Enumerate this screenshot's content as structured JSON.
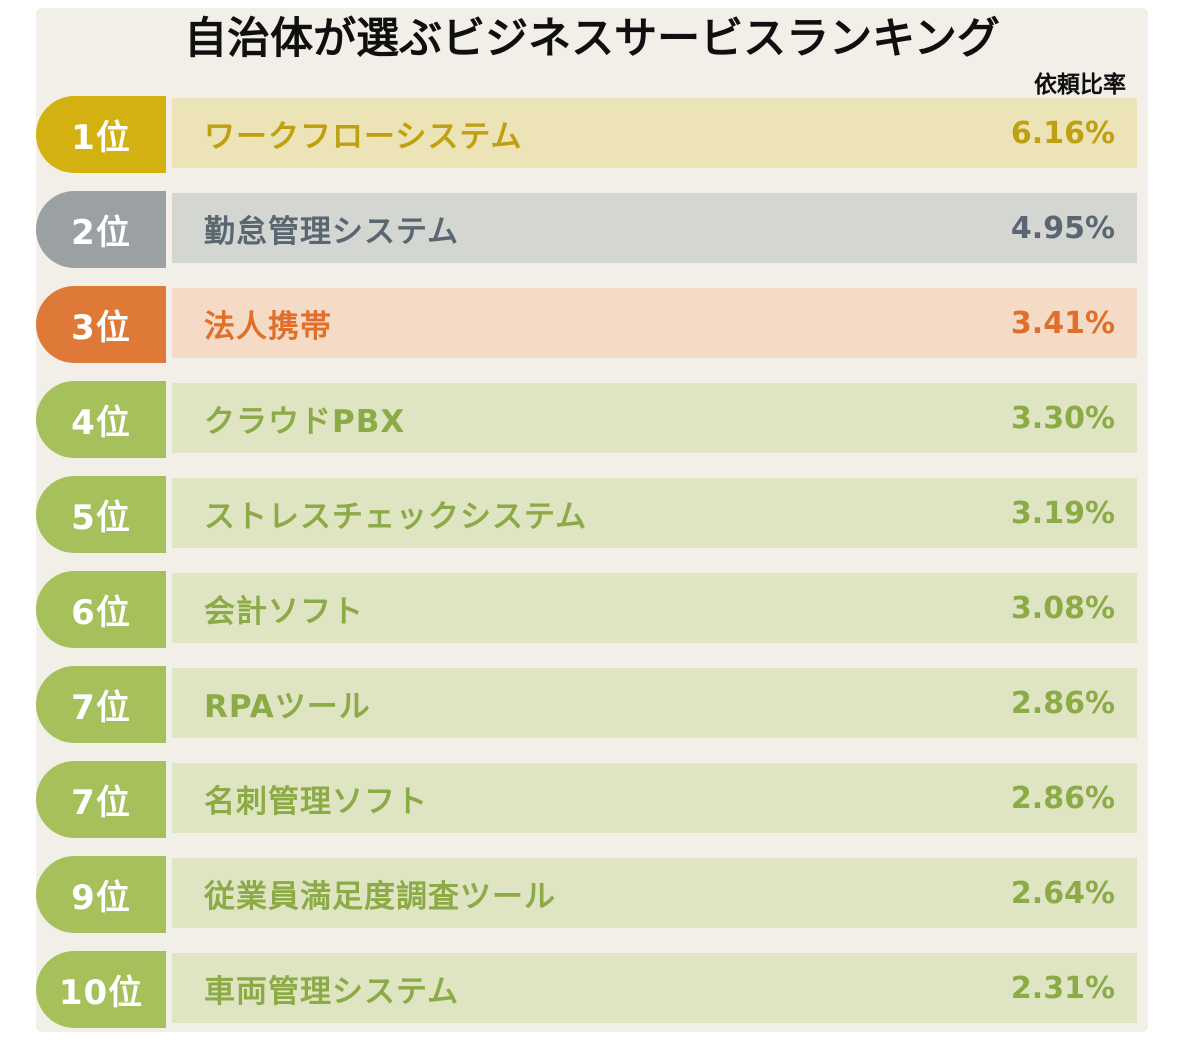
{
  "title": "自治体が選ぶビジネスサービスランキング",
  "column_label": "依頼比率",
  "colors": {
    "page_bg": "#ffffff",
    "card_bg": "#f2efe8",
    "title": "#0f0f0f"
  },
  "chart_data": {
    "type": "bar",
    "title": "自治体が選ぶビジネスサービスランキング",
    "value_label": "依頼比率",
    "unit": "%",
    "ranks": [
      "1位",
      "2位",
      "3位",
      "4位",
      "5位",
      "6位",
      "7位",
      "7位",
      "9位",
      "10位"
    ],
    "categories": [
      "ワークフローシステム",
      "勤怠管理システム",
      "法人携帯",
      "クラウドPBX",
      "ストレスチェックシステム",
      "会計ソフト",
      "RPAツール",
      "名刺管理ソフト",
      "従業員満足度調査ツール",
      "車両管理システム"
    ],
    "values": [
      6.16,
      4.95,
      3.41,
      3.3,
      3.19,
      3.08,
      2.86,
      2.86,
      2.64,
      2.31
    ],
    "legend": "none",
    "grid": "off"
  },
  "rows": [
    {
      "rank": "1位",
      "name": "ワークフローシステム",
      "value": "6.16%",
      "theme": {
        "badge": "#d3b110",
        "bar": "#ece4b6",
        "text": "#bfa011"
      }
    },
    {
      "rank": "2位",
      "name": "勤怠管理システム",
      "value": "4.95%",
      "theme": {
        "badge": "#9ba1a3",
        "bar": "#d4d6d2",
        "text": "#5a6771"
      }
    },
    {
      "rank": "3位",
      "name": "法人携帯",
      "value": "3.41%",
      "theme": {
        "badge": "#df7938",
        "bar": "#f5dbc5",
        "text": "#df6f2b"
      }
    },
    {
      "rank": "4位",
      "name": "クラウドPBX",
      "value": "3.30%",
      "theme": {
        "badge": "#a6c05b",
        "bar": "#dfe5c2",
        "text": "#8cab46"
      }
    },
    {
      "rank": "5位",
      "name": "ストレスチェックシステム",
      "value": "3.19%",
      "theme": {
        "badge": "#a6c05b",
        "bar": "#dfe5c2",
        "text": "#8cab46"
      }
    },
    {
      "rank": "6位",
      "name": "会計ソフト",
      "value": "3.08%",
      "theme": {
        "badge": "#a6c05b",
        "bar": "#dfe5c2",
        "text": "#8cab46"
      }
    },
    {
      "rank": "7位",
      "name": "RPAツール",
      "value": "2.86%",
      "theme": {
        "badge": "#a6c05b",
        "bar": "#dfe5c2",
        "text": "#8cab46"
      }
    },
    {
      "rank": "7位",
      "name": "名刺管理ソフト",
      "value": "2.86%",
      "theme": {
        "badge": "#a6c05b",
        "bar": "#dfe5c2",
        "text": "#8cab46"
      }
    },
    {
      "rank": "9位",
      "name": "従業員満足度調査ツール",
      "value": "2.64%",
      "theme": {
        "badge": "#a6c05b",
        "bar": "#dfe5c2",
        "text": "#8cab46"
      }
    },
    {
      "rank": "10位",
      "name": "車両管理システム",
      "value": "2.31%",
      "theme": {
        "badge": "#a6c05b",
        "bar": "#dfe5c2",
        "text": "#8cab46"
      }
    }
  ]
}
